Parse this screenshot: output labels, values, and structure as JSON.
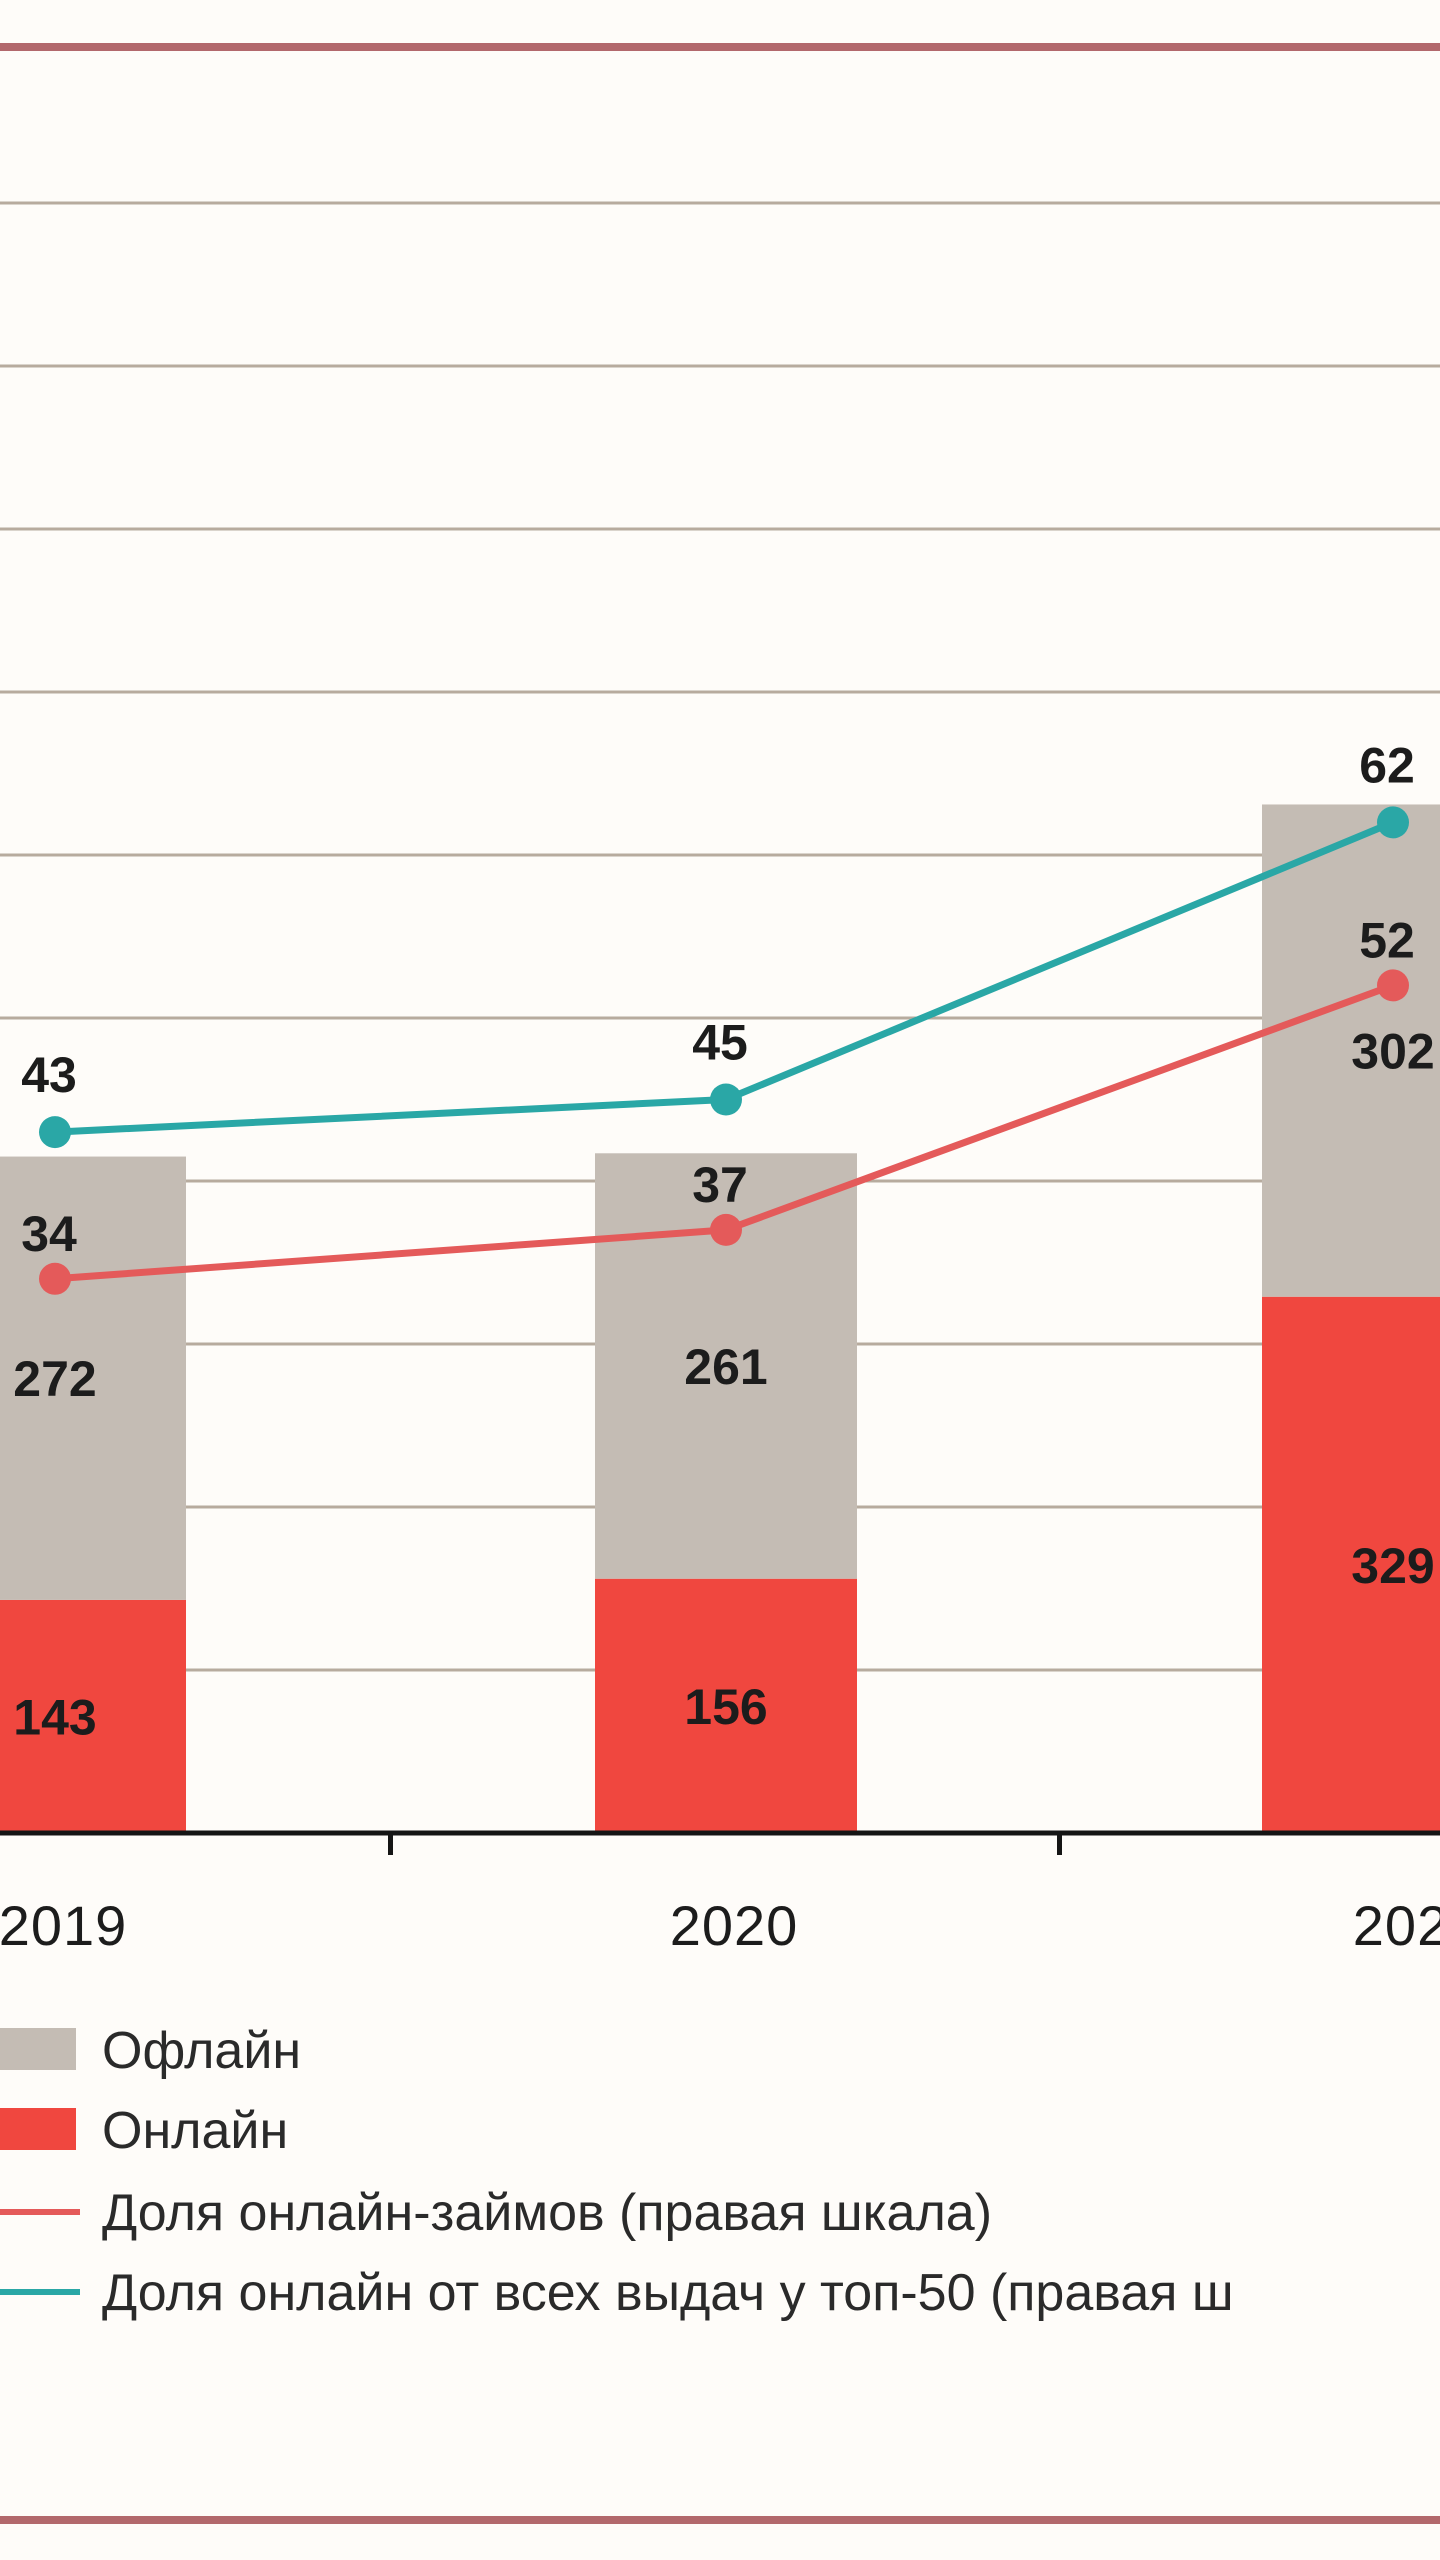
{
  "colors": {
    "offline": "#c4bcb4",
    "online": "#f0473f",
    "share_online_loans": "#e45a5a",
    "share_online_top50": "#2aa7a6",
    "grid": "#b7ab9e",
    "frame": "#b2686c",
    "axis": "#151515"
  },
  "chart_data": {
    "type": "bar",
    "stacked": true,
    "categories": [
      "2019",
      "2020",
      "202"
    ],
    "series": [
      {
        "name": "Онлайн",
        "type": "bar",
        "values": [
          143,
          156,
          329
        ]
      },
      {
        "name": "Офлайн",
        "type": "bar",
        "values": [
          272,
          261,
          302
        ]
      },
      {
        "name": "Доля онлайн-займов (правая шкала)",
        "type": "line",
        "axis": "right",
        "values": [
          34,
          37,
          52
        ]
      },
      {
        "name": "Доля онлайн от всех выдач у топ-50 (правая ш",
        "type": "line",
        "axis": "right",
        "values": [
          43,
          45,
          62
        ]
      }
    ],
    "bar_labels": {
      "online": [
        "143",
        "156",
        "329"
      ],
      "offline": [
        "272",
        "261",
        "302"
      ]
    },
    "line_labels": {
      "share_online_loans": [
        "34",
        "37",
        "52"
      ],
      "share_online_top50": [
        "43",
        "45",
        "62"
      ]
    },
    "legend": [
      {
        "key": "offline",
        "label": "Офлайн"
      },
      {
        "key": "online",
        "label": "Онлайн"
      },
      {
        "key": "share_online_loans",
        "label": "Доля онлайн-займов (правая шкала)"
      },
      {
        "key": "share_online_top50",
        "label": "Доля онлайн от всех выдач у топ-50 (правая ш"
      }
    ],
    "legend_position": "bottom-left",
    "grid": true,
    "ylim_left": [
      0,
      1000
    ],
    "ylim_right": [
      0,
      100
    ]
  }
}
